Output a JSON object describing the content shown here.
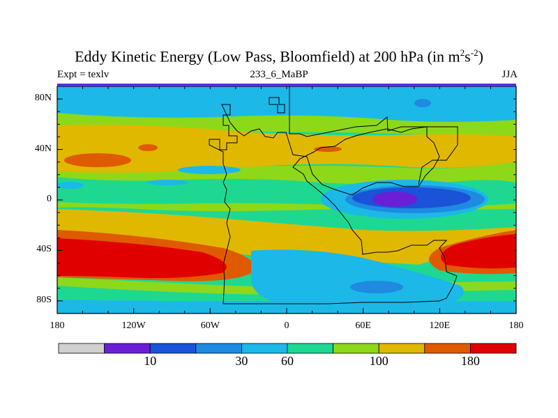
{
  "chart_data": {
    "type": "heatmap",
    "title_main": "Eddy Kinetic Energy (Low Pass, Bloomfield) at 200 hPa (in m",
    "title_unit_m_sup": "2",
    "title_unit_s": "s",
    "title_unit_s_sup": "-2",
    "title_close": ")",
    "left_label": "Expt = texlv",
    "center_label": "233_6_MaBP",
    "right_label": "JJA",
    "x_ticks": [
      {
        "value": -180,
        "label": "180"
      },
      {
        "value": -120,
        "label": "120W"
      },
      {
        "value": -60,
        "label": "60W"
      },
      {
        "value": 0,
        "label": "0"
      },
      {
        "value": 60,
        "label": "60E"
      },
      {
        "value": 120,
        "label": "120E"
      },
      {
        "value": 180,
        "label": "180"
      }
    ],
    "y_ticks": [
      {
        "value": 80,
        "label": "80N"
      },
      {
        "value": 40,
        "label": "40N"
      },
      {
        "value": 0,
        "label": "0"
      },
      {
        "value": -40,
        "label": "40S"
      },
      {
        "value": -80,
        "label": "80S"
      }
    ],
    "xlim": [
      -180,
      180
    ],
    "ylim": [
      -90,
      90
    ],
    "colorbar": {
      "colors": [
        "#d0d0d0",
        "#6a1fd6",
        "#1a52d8",
        "#1e8ae0",
        "#1cb8e8",
        "#1ed892",
        "#8ed81a",
        "#e0b800",
        "#e05a00",
        "#e00000"
      ],
      "labels": [
        {
          "value": 10,
          "label": "10",
          "boundary": 2
        },
        {
          "value": 30,
          "label": "30",
          "boundary": 4
        },
        {
          "value": 60,
          "label": "60",
          "boundary": 5
        },
        {
          "value": 100,
          "label": "100",
          "boundary": 7
        },
        {
          "value": 180,
          "label": "180",
          "boundary": 9
        }
      ]
    },
    "field_levels": [
      "teal",
      "light-green",
      "green",
      "yellow",
      "orange",
      "red",
      "cyan",
      "blue",
      "purple"
    ]
  }
}
